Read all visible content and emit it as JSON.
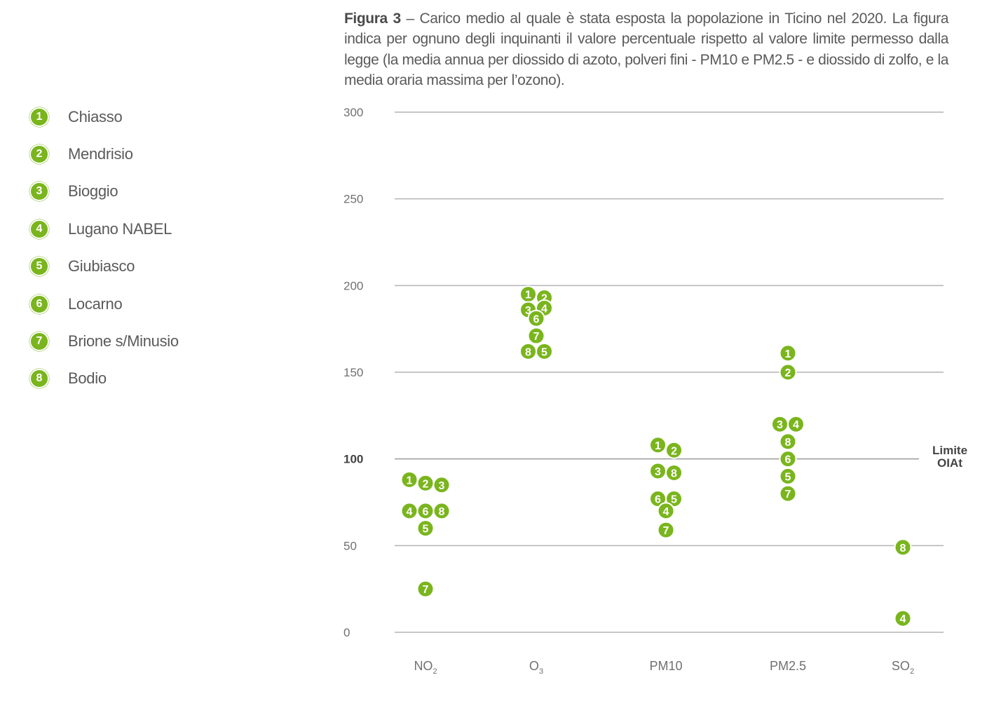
{
  "caption": {
    "figure_label": "Figura 3",
    "text": " – Carico medio al quale è stata esposta la popolazione in Ticino nel 2020. La figura indica per ognuno degli inquinanti il valore percentuale rispetto al valore limite permesso dalla legge (la media annua per diossido di azoto, polveri fini - PM10 e PM2.5 - e diossido di zolfo, e la media oraria massima per l’ozono)."
  },
  "legend": [
    {
      "num": "1",
      "label": "Chiasso"
    },
    {
      "num": "2",
      "label": "Mendrisio"
    },
    {
      "num": "3",
      "label": "Bioggio"
    },
    {
      "num": "4",
      "label": "Lugano NABEL"
    },
    {
      "num": "5",
      "label": "Giubiasco"
    },
    {
      "num": "6",
      "label": "Locarno"
    },
    {
      "num": "7",
      "label": "Brione s/Minusio"
    },
    {
      "num": "8",
      "label": "Bodio"
    }
  ],
  "colors": {
    "marker": "#7ab51d",
    "grid": "#b3b3b3",
    "text": "#5a5a5a"
  },
  "chart_data": {
    "type": "scatter",
    "categories": [
      "NO2",
      "O3",
      "PM10",
      "PM2.5",
      "SO2"
    ],
    "category_labels": [
      {
        "base": "NO",
        "sub": "2"
      },
      {
        "base": "O",
        "sub": "3"
      },
      {
        "base": "PM10",
        "sub": ""
      },
      {
        "base": "PM2.5",
        "sub": ""
      },
      {
        "base": "SO",
        "sub": "2"
      }
    ],
    "yticks": [
      0,
      50,
      100,
      150,
      200,
      250,
      300
    ],
    "ylim": [
      0,
      300
    ],
    "grid": true,
    "reference_line": {
      "value": 100,
      "label_lines": [
        "Limite",
        "OIAt"
      ]
    },
    "points": {
      "NO2": [
        {
          "station": "1",
          "value": 88
        },
        {
          "station": "2",
          "value": 86
        },
        {
          "station": "3",
          "value": 85
        },
        {
          "station": "4",
          "value": 70
        },
        {
          "station": "6",
          "value": 70
        },
        {
          "station": "8",
          "value": 70
        },
        {
          "station": "5",
          "value": 60
        },
        {
          "station": "7",
          "value": 25
        }
      ],
      "O3": [
        {
          "station": "1",
          "value": 195
        },
        {
          "station": "2",
          "value": 193
        },
        {
          "station": "3",
          "value": 186
        },
        {
          "station": "4",
          "value": 187
        },
        {
          "station": "6",
          "value": 181
        },
        {
          "station": "7",
          "value": 171
        },
        {
          "station": "8",
          "value": 162
        },
        {
          "station": "5",
          "value": 162
        }
      ],
      "PM10": [
        {
          "station": "1",
          "value": 108
        },
        {
          "station": "2",
          "value": 105
        },
        {
          "station": "3",
          "value": 93
        },
        {
          "station": "8",
          "value": 92
        },
        {
          "station": "6",
          "value": 77
        },
        {
          "station": "5",
          "value": 77
        },
        {
          "station": "4",
          "value": 70
        },
        {
          "station": "7",
          "value": 59
        }
      ],
      "PM2.5": [
        {
          "station": "1",
          "value": 161
        },
        {
          "station": "2",
          "value": 150
        },
        {
          "station": "3",
          "value": 120
        },
        {
          "station": "4",
          "value": 120
        },
        {
          "station": "8",
          "value": 110
        },
        {
          "station": "6",
          "value": 100
        },
        {
          "station": "5",
          "value": 90
        },
        {
          "station": "7",
          "value": 80
        }
      ],
      "SO2": [
        {
          "station": "8",
          "value": 49
        },
        {
          "station": "4",
          "value": 8
        }
      ]
    }
  }
}
